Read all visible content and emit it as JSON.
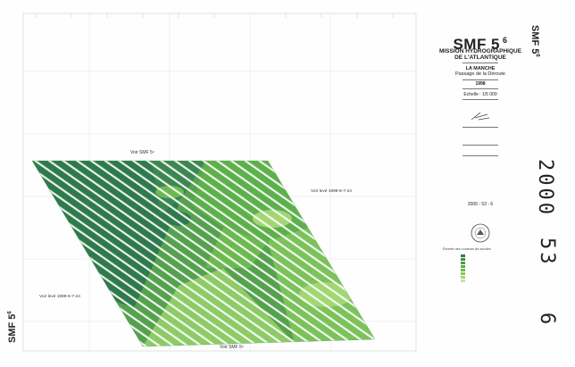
{
  "sheet_code": "SMF 5",
  "sheet_code_sup": "6",
  "title_line1": "MISSION HYDROGRAPHIQUE",
  "title_line2": "DE L'ATLANTIQUE",
  "area_line1": "LA MANCHE",
  "area_line2": "Passage de la Déroute",
  "year": "1998",
  "scale": "Echelle : 1/5 000",
  "ref_code": "2000 - 53 - 6",
  "stamp_top": "2000",
  "stamp_mid": "53",
  "stamp_bottom": "6",
  "map_labels": {
    "voir_top": "Voir SMF 5⁶",
    "voir_bottom": "Voir SMF 5⁶",
    "voir_right": "Voir levé 1999-6-7-24",
    "voir_left": "Voir levé 1999-6-7-24"
  },
  "legend": {
    "title": "Échelle des couleurs de sondes",
    "colors": [
      "#2f7a4c",
      "#3e8c4a",
      "#4d9c45",
      "#5cad43",
      "#6dbd45",
      "#86c85a",
      "#a2d672",
      "#c4e59a"
    ]
  }
}
